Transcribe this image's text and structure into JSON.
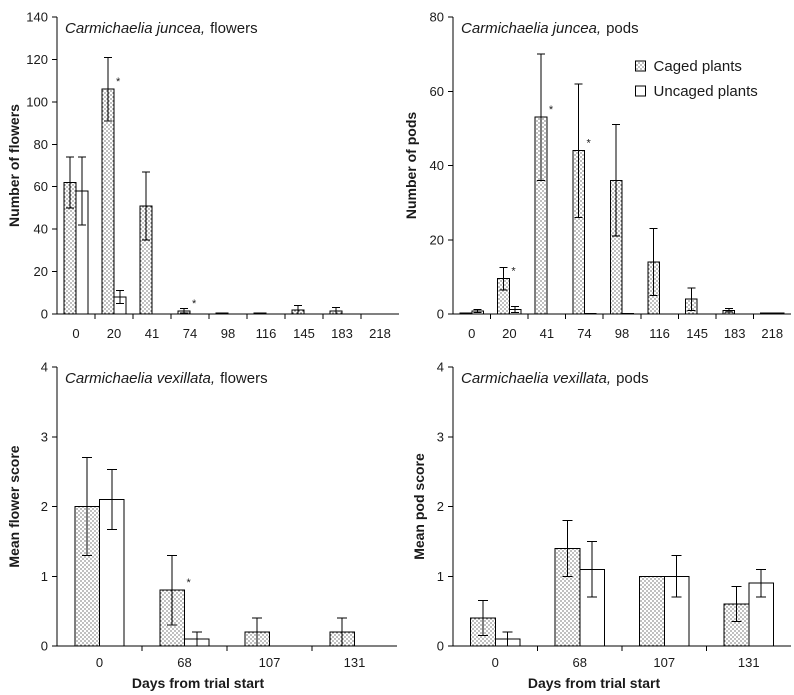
{
  "colors": {
    "background": "#ffffff",
    "axis": "#000000",
    "text": "#1a1a1a",
    "bar_fill": "#ffffff",
    "dot": "#3a3a3a"
  },
  "significance_marker": "*",
  "chart_data": [
    {
      "type": "bar",
      "title": {
        "species": "Carmichaelia juncea,",
        "part": "flowers"
      },
      "ylabel": "Number of flowers",
      "ylim": [
        0,
        140
      ],
      "yticks": [
        0,
        20,
        40,
        60,
        80,
        100,
        120,
        140
      ],
      "categories": [
        "0",
        "20",
        "41",
        "74",
        "98",
        "116",
        "145",
        "183",
        "218"
      ],
      "grid": false,
      "series": [
        {
          "dotted": true,
          "values": [
            62,
            106,
            51,
            1.5,
            0.5,
            0.5,
            2,
            1.5,
            0
          ],
          "errors": [
            12,
            15,
            16,
            1,
            0,
            0,
            2,
            1.5,
            0
          ],
          "significant": [
            false,
            true,
            false,
            true,
            false,
            false,
            false,
            false,
            false
          ]
        },
        {
          "dotted": false,
          "values": [
            58,
            8,
            0,
            0,
            0,
            0,
            0,
            0,
            0
          ],
          "errors": [
            16,
            3,
            0,
            0,
            0,
            0,
            0,
            0,
            0
          ]
        }
      ]
    },
    {
      "type": "bar",
      "title": {
        "species": "Carmichaelia juncea,",
        "part": "pods"
      },
      "ylabel": "Number of pods",
      "ylim": [
        0,
        80
      ],
      "yticks": [
        0,
        20,
        40,
        60,
        80
      ],
      "categories": [
        "0",
        "20",
        "41",
        "74",
        "98",
        "116",
        "145",
        "183",
        "218"
      ],
      "grid": false,
      "legend": "top-right",
      "series": [
        {
          "name": "Caged plants",
          "dotted": true,
          "values": [
            0.3,
            9.5,
            53,
            44,
            36,
            14,
            4,
            1,
            0.3
          ],
          "errors": [
            0,
            3,
            17,
            18,
            15,
            9,
            3,
            0.5,
            0
          ],
          "significant": [
            false,
            true,
            true,
            true,
            false,
            false,
            false,
            false,
            false
          ]
        },
        {
          "name": "Uncaged plants",
          "dotted": false,
          "values": [
            0.8,
            1.2,
            0,
            0.2,
            0.2,
            0,
            0,
            0,
            0.3
          ],
          "errors": [
            0.4,
            0.8,
            0,
            0,
            0,
            0,
            0,
            0,
            0
          ]
        }
      ]
    },
    {
      "type": "bar",
      "title": {
        "species": "Carmichaelia vexillata,",
        "part": "flowers"
      },
      "xlabel": "Days from trial start",
      "ylabel": "Mean flower score",
      "ylim": [
        0,
        4
      ],
      "yticks": [
        0,
        1,
        2,
        3,
        4
      ],
      "categories": [
        "0",
        "68",
        "107",
        "131"
      ],
      "grid": false,
      "series": [
        {
          "dotted": true,
          "values": [
            2.0,
            0.8,
            0.2,
            0.2
          ],
          "errors": [
            0.7,
            0.5,
            0.2,
            0.2
          ],
          "significant": [
            false,
            true,
            false,
            false
          ]
        },
        {
          "dotted": false,
          "values": [
            2.1,
            0.1,
            0,
            0
          ],
          "errors": [
            0.43,
            0.1,
            0,
            0
          ]
        }
      ]
    },
    {
      "type": "bar",
      "title": {
        "species": "Carmichaelia vexillata,",
        "part": "pods"
      },
      "xlabel": "Days from trial start",
      "ylabel": "Mean pod score",
      "ylim": [
        0,
        4
      ],
      "yticks": [
        0,
        1,
        2,
        3,
        4
      ],
      "categories": [
        "0",
        "68",
        "107",
        "131"
      ],
      "grid": false,
      "series": [
        {
          "dotted": true,
          "values": [
            0.4,
            1.4,
            1.0,
            0.6
          ],
          "errors": [
            0.25,
            0.4,
            0,
            0.25
          ]
        },
        {
          "dotted": false,
          "values": [
            0.1,
            1.1,
            1.0,
            0.9
          ],
          "errors": [
            0.1,
            0.4,
            0.3,
            0.2
          ]
        }
      ]
    }
  ]
}
